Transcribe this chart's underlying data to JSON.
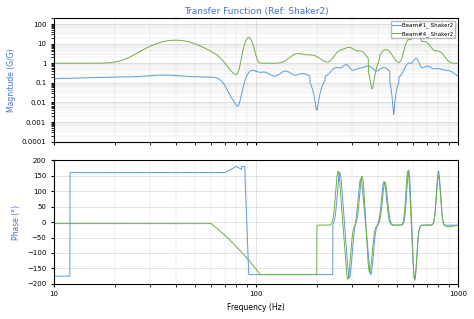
{
  "title": "Transfer Function (Ref: Shaker2)",
  "legend_blue": "Beam#1_ Shaker2",
  "legend_green": "Beam#4_ Shaker2",
  "xlabel": "Frequency (Hz)",
  "ylabel_top": "Magnitude (G/G)",
  "ylabel_bot": "Phase (°)",
  "freq_min": 10,
  "freq_max": 1000,
  "mag_ylim": [
    0.0001,
    200
  ],
  "phase_ylim": [
    -200,
    200
  ],
  "phase_yticks": [
    -200,
    -150,
    -100,
    -50,
    0,
    50,
    100,
    150,
    200
  ],
  "color_blue": "#5B9BD5",
  "color_green": "#70AD47",
  "background": "#FFFFFF",
  "grid_color": "#CCCCCC",
  "title_color": "#4472C4"
}
